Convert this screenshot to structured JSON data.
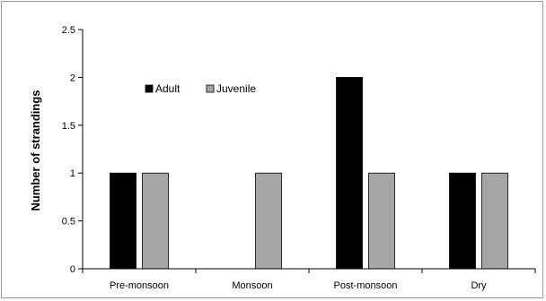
{
  "chart_data": {
    "type": "bar",
    "categories": [
      "Pre-monsoon",
      "Monsoon",
      "Post-monsoon",
      "Dry"
    ],
    "series": [
      {
        "name": "Adult",
        "values": [
          1,
          0,
          2,
          1
        ],
        "color": "#000000"
      },
      {
        "name": "Juvenile",
        "values": [
          1,
          1,
          1,
          1
        ],
        "color": "#a6a6a6"
      }
    ],
    "title": "",
    "xlabel": "",
    "ylabel": "Number of strandings",
    "ylim": [
      0,
      2.5
    ],
    "yticks": [
      0,
      0.5,
      1,
      1.5,
      2,
      2.5
    ],
    "ytick_labels": [
      "0",
      "0.5",
      "1",
      "1.5",
      "2",
      "2.5"
    ],
    "grid": false,
    "legend_position": "top-left"
  }
}
